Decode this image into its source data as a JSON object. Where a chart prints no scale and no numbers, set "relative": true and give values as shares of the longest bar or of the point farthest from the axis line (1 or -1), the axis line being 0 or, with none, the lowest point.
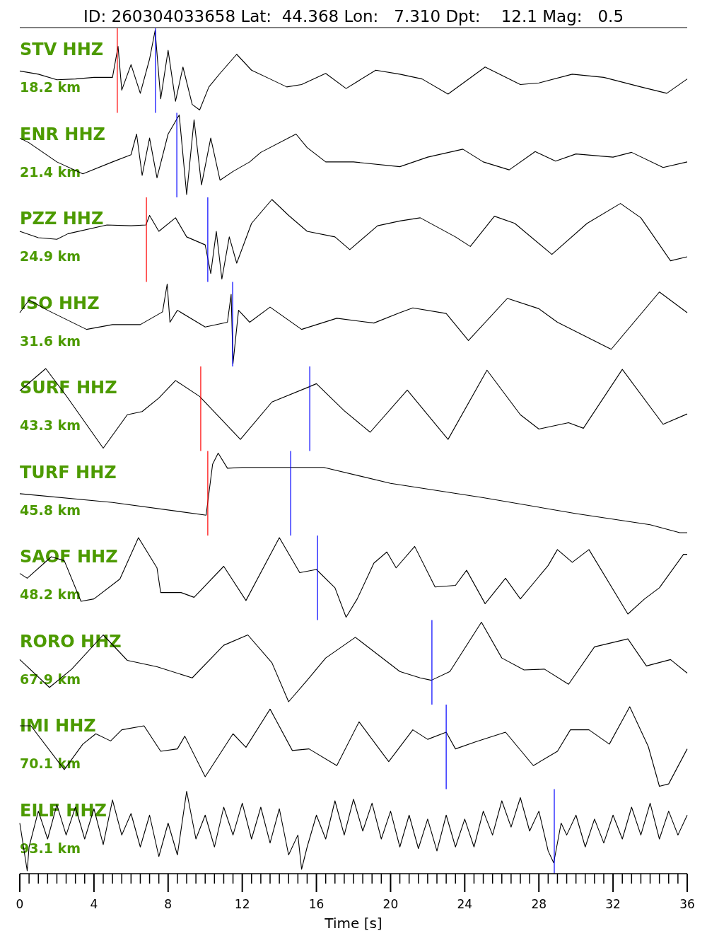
{
  "chart_data": [
    {
      "type": "line",
      "relative": true,
      "title": "ID: 260304033658 Lat:  44.368 Lon:   7.310 Dpt:    12.1 Mag:   0.5",
      "annotations": [
        "STV HHZ",
        "18.2 km"
      ],
      "xlim": [
        0,
        36
      ],
      "tick_labels": false,
      "ref_lines": [
        {
          "axis": "x",
          "value": 5.26,
          "color": "#ff0000"
        },
        {
          "axis": "x",
          "value": 7.32,
          "color": "#0000ff"
        }
      ],
      "series": [
        {
          "color": "#000000",
          "x": [
            0,
            1,
            2,
            3,
            4,
            5,
            5.3,
            5.5,
            6,
            6.5,
            7,
            7.3,
            7.6,
            8,
            8.4,
            8.8,
            9.3,
            9.7,
            10.2,
            10.8,
            11.7,
            12.5,
            13.5,
            14.4,
            15.2,
            16.5,
            17.6,
            19.2,
            20.5,
            21.7,
            23.1,
            25.1,
            27,
            28,
            29.8,
            31.5,
            33.5,
            34.9,
            36
          ],
          "values": [
            0.49,
            0.45,
            0.38,
            0.39,
            0.41,
            0.41,
            0.8,
            0.25,
            0.57,
            0.21,
            0.64,
            1.0,
            0.14,
            0.75,
            0.11,
            0.54,
            0.07,
            0,
            0.29,
            0.46,
            0.7,
            0.5,
            0.39,
            0.29,
            0.32,
            0.46,
            0.27,
            0.5,
            0.45,
            0.39,
            0.2,
            0.54,
            0.32,
            0.34,
            0.45,
            0.41,
            0.29,
            0.21,
            0.39
          ]
        }
      ]
    },
    {
      "type": "line",
      "relative": true,
      "annotations": [
        "ENR HHZ",
        "21.4 km"
      ],
      "xlim": [
        0,
        36
      ],
      "tick_labels": false,
      "ref_lines": [
        {
          "axis": "x",
          "value": 8.47,
          "color": "#0000ff"
        }
      ],
      "series": [
        {
          "color": "#000000",
          "x": [
            0,
            0.5,
            2,
            3.4,
            5,
            6,
            6.3,
            6.6,
            7,
            7.4,
            8,
            8.6,
            9,
            9.4,
            9.8,
            10.3,
            10.8,
            11.5,
            12.4,
            13,
            14.9,
            15.5,
            16.5,
            18,
            20.5,
            22,
            23.9,
            25,
            26.4,
            27.8,
            28.9,
            30,
            32,
            33,
            34.7,
            36
          ],
          "values": [
            0.71,
            0.65,
            0.41,
            0.26,
            0.41,
            0.5,
            0.76,
            0.24,
            0.71,
            0.21,
            0.76,
            1.0,
            0,
            0.94,
            0.12,
            0.71,
            0.18,
            0.29,
            0.41,
            0.53,
            0.76,
            0.59,
            0.41,
            0.41,
            0.35,
            0.47,
            0.57,
            0.41,
            0.31,
            0.54,
            0.42,
            0.51,
            0.47,
            0.53,
            0.34,
            0.41
          ]
        }
      ]
    },
    {
      "type": "line",
      "relative": true,
      "annotations": [
        "PZZ HHZ",
        "24.9 km"
      ],
      "xlim": [
        0,
        36
      ],
      "tick_labels": false,
      "ref_lines": [
        {
          "axis": "x",
          "value": 6.83,
          "color": "#ff0000"
        },
        {
          "axis": "x",
          "value": 10.14,
          "color": "#0000ff"
        }
      ],
      "series": [
        {
          "color": "#000000",
          "x": [
            0,
            1,
            2,
            2.6,
            4.7,
            6,
            6.8,
            7,
            7.5,
            8.4,
            9,
            10,
            10.3,
            10.6,
            10.9,
            11.3,
            11.7,
            12.5,
            13.6,
            14.5,
            15.5,
            17,
            17.8,
            19.3,
            20.5,
            21.6,
            23.5,
            24.3,
            25.6,
            26.7,
            28.7,
            30.6,
            32.4,
            33.5,
            35.1,
            36
          ],
          "values": [
            0.6,
            0.52,
            0.5,
            0.57,
            0.68,
            0.67,
            0.68,
            0.8,
            0.6,
            0.77,
            0.53,
            0.43,
            0.07,
            0.6,
            0,
            0.53,
            0.2,
            0.7,
            1.0,
            0.8,
            0.6,
            0.53,
            0.37,
            0.67,
            0.73,
            0.77,
            0.53,
            0.41,
            0.79,
            0.7,
            0.31,
            0.7,
            0.95,
            0.77,
            0.23,
            0.28
          ]
        }
      ]
    },
    {
      "type": "line",
      "relative": true,
      "annotations": [
        "ISO HHZ",
        "31.6 km"
      ],
      "xlim": [
        0,
        36
      ],
      "tick_labels": false,
      "ref_lines": [
        {
          "axis": "x",
          "value": 11.48,
          "color": "#0000ff"
        }
      ],
      "series": [
        {
          "color": "#000000",
          "x": [
            0,
            0.5,
            1.5,
            3.6,
            5,
            6.5,
            7.7,
            7.95,
            8.1,
            8.5,
            10,
            11.2,
            11.4,
            11.5,
            11.8,
            12.4,
            13.5,
            15.2,
            17.1,
            19.1,
            20.5,
            21.2,
            23,
            24.2,
            26.3,
            28,
            29,
            31.9,
            34.5,
            36
          ],
          "values": [
            0.64,
            0.8,
            0.67,
            0.43,
            0.49,
            0.49,
            0.65,
            1.0,
            0.52,
            0.67,
            0.46,
            0.52,
            0.87,
            0,
            0.67,
            0.52,
            0.71,
            0.43,
            0.57,
            0.51,
            0.64,
            0.7,
            0.63,
            0.29,
            0.82,
            0.69,
            0.52,
            0.18,
            0.9,
            0.64
          ]
        }
      ]
    },
    {
      "type": "line",
      "relative": true,
      "annotations": [
        "SURF HHZ",
        "43.3 km"
      ],
      "xlim": [
        0,
        36
      ],
      "tick_labels": false,
      "ref_lines": [
        {
          "axis": "x",
          "value": 9.76,
          "color": "#ff0000"
        },
        {
          "axis": "x",
          "value": 15.64,
          "color": "#0000ff"
        }
      ],
      "series": [
        {
          "color": "#000000",
          "x": [
            0,
            1.4,
            2.5,
            4.5,
            5.8,
            6.6,
            7.5,
            8.4,
            9.7,
            11.9,
            13.6,
            15.6,
            16,
            17.5,
            18.9,
            20.9,
            23.1,
            25.2,
            27,
            28,
            29.6,
            30.4,
            32.5,
            34.7,
            36
          ],
          "values": [
            0.72,
            1.0,
            0.66,
            0,
            0.42,
            0.46,
            0.63,
            0.85,
            0.65,
            0.11,
            0.58,
            0.77,
            0.81,
            0.47,
            0.2,
            0.73,
            0.11,
            0.98,
            0.42,
            0.24,
            0.32,
            0.25,
            0.99,
            0.3,
            0.43
          ]
        }
      ]
    },
    {
      "type": "line",
      "relative": true,
      "annotations": [
        "TURF HHZ",
        "45.8 km"
      ],
      "xlim": [
        0,
        36
      ],
      "tick_labels": false,
      "ref_lines": [
        {
          "axis": "x",
          "value": 10.14,
          "color": "#ff0000"
        },
        {
          "axis": "x",
          "value": 14.61,
          "color": "#0000ff"
        }
      ],
      "series": [
        {
          "color": "#000000",
          "x": [
            0,
            5,
            10.05,
            10.4,
            10.7,
            11.2,
            12,
            16.4,
            20,
            25,
            30,
            34,
            35.6,
            36
          ],
          "values": [
            0.49,
            0.38,
            0.22,
            0.86,
            1.0,
            0.81,
            0.82,
            0.82,
            0.62,
            0.44,
            0.24,
            0.1,
            0,
            0
          ]
        }
      ]
    },
    {
      "type": "line",
      "relative": true,
      "annotations": [
        "SAOF HHZ",
        "48.2 km"
      ],
      "xlim": [
        0,
        36
      ],
      "tick_labels": false,
      "ref_lines": [
        {
          "axis": "x",
          "value": 16.06,
          "color": "#0000ff"
        }
      ],
      "series": [
        {
          "color": "#000000",
          "x": [
            0,
            0.4,
            1.7,
            2.4,
            3.3,
            4,
            5.4,
            6.4,
            7.4,
            7.6,
            8.7,
            9.4,
            11,
            12.2,
            14,
            15.1,
            16,
            17,
            17.6,
            18.2,
            19.1,
            19.8,
            20.3,
            21.3,
            22.4,
            23.5,
            24.1,
            25.1,
            26.2,
            27,
            28.5,
            29,
            29.8,
            30.7,
            32.8,
            33.7,
            34.5,
            35.8,
            36
          ],
          "values": [
            0.55,
            0.49,
            0.76,
            0.71,
            0.2,
            0.23,
            0.48,
            1.0,
            0.62,
            0.31,
            0.31,
            0.25,
            0.64,
            0.21,
            1.0,
            0.56,
            0.6,
            0.37,
            0,
            0.23,
            0.68,
            0.82,
            0.62,
            0.89,
            0.38,
            0.4,
            0.59,
            0.17,
            0.49,
            0.23,
            0.65,
            0.85,
            0.69,
            0.85,
            0.04,
            0.23,
            0.37,
            0.79,
            0.79
          ]
        }
      ]
    },
    {
      "type": "line",
      "relative": true,
      "annotations": [
        "RORO HHZ",
        "67.9 km"
      ],
      "xlim": [
        0,
        36
      ],
      "tick_labels": false,
      "ref_lines": [
        {
          "axis": "x",
          "value": 22.23,
          "color": "#0000ff"
        }
      ],
      "series": [
        {
          "color": "#000000",
          "x": [
            0,
            1.6,
            2.8,
            4.5,
            5.8,
            7.4,
            9.3,
            11,
            12.3,
            13.6,
            14.5,
            15.5,
            16.5,
            18.1,
            20.5,
            21.6,
            22.2,
            23.2,
            24.9,
            26,
            27.2,
            28.3,
            29.6,
            31,
            32.8,
            33.8,
            35.1,
            36
          ],
          "values": [
            0.53,
            0.18,
            0.41,
            0.84,
            0.52,
            0.44,
            0.3,
            0.71,
            0.84,
            0.49,
            0,
            0.27,
            0.55,
            0.81,
            0.38,
            0.3,
            0.27,
            0.38,
            1.0,
            0.55,
            0.4,
            0.41,
            0.22,
            0.69,
            0.79,
            0.45,
            0.53,
            0.36
          ]
        }
      ]
    },
    {
      "type": "line",
      "relative": true,
      "annotations": [
        "IMI HHZ",
        "70.1 km"
      ],
      "xlim": [
        0,
        36
      ],
      "tick_labels": false,
      "ref_lines": [
        {
          "axis": "x",
          "value": 23.0,
          "color": "#0000ff"
        }
      ],
      "series": [
        {
          "color": "#000000",
          "x": [
            0,
            0.6,
            2.4,
            3.4,
            4.1,
            4.9,
            5.5,
            6.7,
            7.6,
            8.5,
            8.9,
            10,
            11.5,
            12.2,
            13.5,
            14.7,
            15.6,
            17.1,
            18.3,
            19.9,
            21.2,
            22,
            23,
            23.5,
            24.6,
            26.2,
            27.7,
            29,
            29.7,
            30.7,
            31.8,
            32.9,
            33.9,
            34.5,
            35,
            36
          ],
          "values": [
            0.76,
            0.76,
            0.21,
            0.53,
            0.66,
            0.57,
            0.71,
            0.76,
            0.44,
            0.47,
            0.63,
            0.12,
            0.66,
            0.49,
            0.97,
            0.45,
            0.47,
            0.26,
            0.81,
            0.31,
            0.71,
            0.59,
            0.68,
            0.47,
            0.56,
            0.68,
            0.26,
            0.44,
            0.71,
            0.71,
            0.53,
            1.0,
            0.5,
            0,
            0.03,
            0.47
          ]
        }
      ]
    },
    {
      "type": "line",
      "relative": true,
      "annotations": [
        "EILF HHZ",
        "93.1 km"
      ],
      "xlim": [
        0,
        36
      ],
      "xlabel": "Time [s]",
      "tick_labels": "x",
      "xticks": [
        0,
        {
          "value": 0.5,
          "label": null
        },
        {
          "value": 1,
          "label": null
        },
        {
          "value": 1.5,
          "label": null
        },
        {
          "value": 2,
          "label": null
        },
        {
          "value": 2.5,
          "label": null
        },
        {
          "value": 3,
          "label": null
        },
        {
          "value": 3.5,
          "label": null
        },
        4,
        {
          "value": 4.5,
          "label": null
        },
        {
          "value": 5,
          "label": null
        },
        {
          "value": 5.5,
          "label": null
        },
        {
          "value": 6,
          "label": null
        },
        {
          "value": 6.5,
          "label": null
        },
        {
          "value": 7,
          "label": null
        },
        {
          "value": 7.5,
          "label": null
        },
        8,
        {
          "value": 8.5,
          "label": null
        },
        {
          "value": 9,
          "label": null
        },
        {
          "value": 9.5,
          "label": null
        },
        {
          "value": 10,
          "label": null
        },
        {
          "value": 10.5,
          "label": null
        },
        {
          "value": 11,
          "label": null
        },
        {
          "value": 11.5,
          "label": null
        },
        12,
        {
          "value": 12.5,
          "label": null
        },
        {
          "value": 13,
          "label": null
        },
        {
          "value": 13.5,
          "label": null
        },
        {
          "value": 14,
          "label": null
        },
        {
          "value": 14.5,
          "label": null
        },
        {
          "value": 15,
          "label": null
        },
        {
          "value": 15.5,
          "label": null
        },
        16,
        {
          "value": 16.5,
          "label": null
        },
        {
          "value": 17,
          "label": null
        },
        {
          "value": 17.5,
          "label": null
        },
        {
          "value": 18,
          "label": null
        },
        {
          "value": 18.5,
          "label": null
        },
        {
          "value": 19,
          "label": null
        },
        {
          "value": 19.5,
          "label": null
        },
        20,
        {
          "value": 20.5,
          "label": null
        },
        {
          "value": 21,
          "label": null
        },
        {
          "value": 21.5,
          "label": null
        },
        {
          "value": 22,
          "label": null
        },
        {
          "value": 22.5,
          "label": null
        },
        {
          "value": 23,
          "label": null
        },
        {
          "value": 23.5,
          "label": null
        },
        24,
        {
          "value": 24.5,
          "label": null
        },
        {
          "value": 25,
          "label": null
        },
        {
          "value": 25.5,
          "label": null
        },
        {
          "value": 26,
          "label": null
        },
        {
          "value": 26.5,
          "label": null
        },
        {
          "value": 27,
          "label": null
        },
        {
          "value": 27.5,
          "label": null
        },
        28,
        {
          "value": 28.5,
          "label": null
        },
        {
          "value": 29,
          "label": null
        },
        {
          "value": 29.5,
          "label": null
        },
        {
          "value": 30,
          "label": null
        },
        {
          "value": 30.5,
          "label": null
        },
        {
          "value": 31,
          "label": null
        },
        {
          "value": 31.5,
          "label": null
        },
        32,
        {
          "value": 32.5,
          "label": null
        },
        {
          "value": 33,
          "label": null
        },
        {
          "value": 33.5,
          "label": null
        },
        {
          "value": 34,
          "label": null
        },
        {
          "value": 34.5,
          "label": null
        },
        {
          "value": 35,
          "label": null
        },
        {
          "value": 35.5,
          "label": null
        },
        36
      ],
      "ref_lines": [
        {
          "axis": "x",
          "value": 28.83,
          "color": "#0000ff"
        }
      ],
      "series": [
        {
          "color": "#000000",
          "x": [
            0,
            0.4,
            0.5,
            1,
            1.5,
            2,
            2.5,
            3,
            3.5,
            4,
            4.5,
            5,
            5.5,
            6,
            6.5,
            7,
            7.5,
            8,
            8.5,
            9,
            9.5,
            10,
            10.5,
            11,
            11.5,
            12,
            12.5,
            13,
            13.5,
            14,
            14.5,
            15,
            15.2,
            15.5,
            16,
            16.5,
            17,
            17.5,
            18,
            18.5,
            19,
            19.5,
            20,
            20.5,
            21,
            21.5,
            22,
            22.5,
            23,
            23.5,
            24,
            24.5,
            25,
            25.5,
            26,
            26.5,
            27,
            27.5,
            28,
            28.5,
            28.8,
            29.2,
            29.5,
            30,
            30.5,
            31,
            31.5,
            32,
            32.5,
            33,
            33.5,
            34,
            34.5,
            35,
            35.5,
            36
          ],
          "values": [
            0.6,
            0,
            0.3,
            0.75,
            0.4,
            0.83,
            0.45,
            0.8,
            0.4,
            0.78,
            0.33,
            0.89,
            0.45,
            0.72,
            0.3,
            0.7,
            0.18,
            0.6,
            0.2,
            1.0,
            0.4,
            0.7,
            0.3,
            0.8,
            0.45,
            0.85,
            0.4,
            0.8,
            0.35,
            0.78,
            0.2,
            0.45,
            0.02,
            0.3,
            0.7,
            0.4,
            0.88,
            0.45,
            0.9,
            0.5,
            0.85,
            0.4,
            0.75,
            0.3,
            0.7,
            0.28,
            0.65,
            0.25,
            0.7,
            0.3,
            0.65,
            0.3,
            0.75,
            0.45,
            0.88,
            0.55,
            0.92,
            0.5,
            0.75,
            0.25,
            0.1,
            0.6,
            0.45,
            0.7,
            0.3,
            0.65,
            0.35,
            0.7,
            0.4,
            0.8,
            0.45,
            0.85,
            0.4,
            0.75,
            0.45,
            0.7
          ]
        }
      ]
    }
  ]
}
